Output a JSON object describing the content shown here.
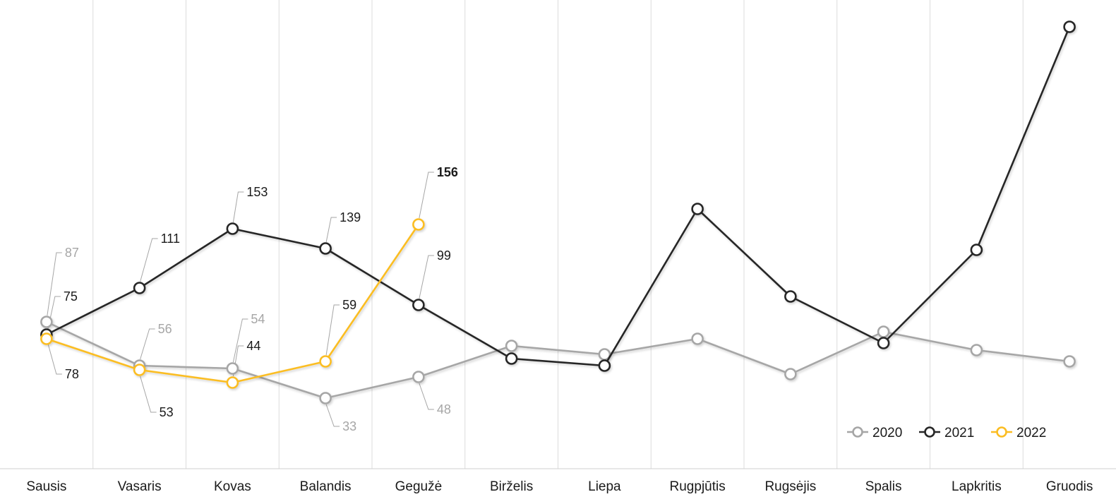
{
  "chart_data": {
    "type": "line",
    "categories": [
      "Sausis",
      "Vasaris",
      "Kovas",
      "Balandis",
      "Gegužė",
      "Birželis",
      "Liepa",
      "Rugpjūtis",
      "Rugsėjis",
      "Spalis",
      "Lapkritis",
      "Gruodis"
    ],
    "ylim": [
      0,
      300
    ],
    "grid": "vertical",
    "legend_position": "bottom-right",
    "series": [
      {
        "name": "2020",
        "color": "#a6a6a6",
        "values": [
          87,
          56,
          54,
          33,
          48,
          70,
          64,
          75,
          50,
          80,
          67,
          59
        ],
        "labels": [
          "87",
          "56",
          "54",
          "33",
          "48",
          null,
          null,
          null,
          null,
          null,
          null,
          null
        ]
      },
      {
        "name": "2021",
        "color": "#262626",
        "values": [
          78,
          111,
          153,
          139,
          99,
          61,
          56,
          167,
          105,
          72,
          138,
          296
        ],
        "labels": [
          "78",
          "111",
          "153",
          "139",
          "99",
          null,
          null,
          null,
          null,
          null,
          null,
          null
        ]
      },
      {
        "name": "2022",
        "color": "#fbbd23",
        "values": [
          75,
          53,
          44,
          59,
          156,
          null,
          null,
          null,
          null,
          null,
          null,
          null
        ],
        "labels": [
          "75",
          "53",
          "44",
          "59",
          "156",
          null,
          null,
          null,
          null,
          null,
          null,
          null
        ]
      }
    ]
  }
}
